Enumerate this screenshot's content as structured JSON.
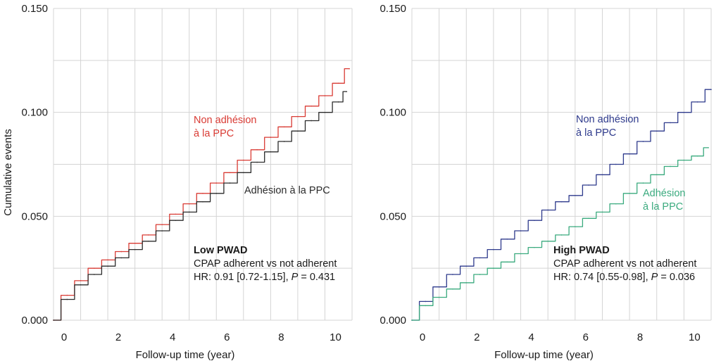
{
  "chart_data": [
    {
      "type": "line",
      "panel": "left",
      "title": "",
      "xlabel": "Follow-up time (year)",
      "ylabel": "Cumulative events",
      "xlim": [
        0,
        11
      ],
      "ylim": [
        0,
        0.15
      ],
      "xticks": [
        0,
        2,
        4,
        6,
        8,
        10
      ],
      "xtick_labels": [
        "0",
        "2",
        "4",
        "6",
        "8",
        "10"
      ],
      "yticks": [
        0,
        0.05,
        0.1,
        0.15
      ],
      "ytick_labels": [
        "0.000",
        "0.050",
        "0.100",
        "0.150"
      ],
      "grid": true,
      "series": [
        {
          "name": "Non adhésion\nà la PPC",
          "label_lines": [
            "Non adhésion",
            "à la PPC"
          ],
          "color": "#d93b34",
          "x": [
            0,
            0.5,
            1,
            1.5,
            2,
            2.5,
            3,
            3.5,
            4,
            4.5,
            5,
            5.5,
            6,
            6.5,
            7,
            7.5,
            8,
            8.5,
            9,
            9.5,
            10,
            10.5,
            10.9
          ],
          "y": [
            0,
            0.012,
            0.019,
            0.025,
            0.029,
            0.033,
            0.037,
            0.041,
            0.046,
            0.051,
            0.056,
            0.061,
            0.066,
            0.071,
            0.077,
            0.082,
            0.088,
            0.093,
            0.098,
            0.103,
            0.108,
            0.114,
            0.121
          ]
        },
        {
          "name": "Adhésion à la PPC",
          "label_lines": [
            "Adhésion à la PPC"
          ],
          "color": "#2b2b2b",
          "x": [
            0,
            0.5,
            1,
            1.5,
            2,
            2.5,
            3,
            3.5,
            4,
            4.5,
            5,
            5.5,
            6,
            6.5,
            7,
            7.5,
            8,
            8.5,
            9,
            9.5,
            10,
            10.5,
            10.8
          ],
          "y": [
            0,
            0.01,
            0.017,
            0.022,
            0.026,
            0.03,
            0.034,
            0.038,
            0.043,
            0.048,
            0.052,
            0.057,
            0.061,
            0.066,
            0.071,
            0.076,
            0.081,
            0.086,
            0.091,
            0.096,
            0.1,
            0.105,
            0.11
          ]
        }
      ],
      "annotation": {
        "heading": "Low PWAD",
        "line2": "CPAP adherent vs not adherent",
        "hr_prefix": "HR: 0.91 [0.72-1.15], ",
        "p_symbol": "P",
        "p_value": " = 0.431"
      }
    },
    {
      "type": "line",
      "panel": "right",
      "title": "",
      "xlabel": "Follow-up time (year)",
      "ylabel": "",
      "xlim": [
        0,
        11
      ],
      "ylim": [
        0,
        0.15
      ],
      "xticks": [
        0,
        2,
        4,
        6,
        8,
        10
      ],
      "xtick_labels": [
        "0",
        "2",
        "4",
        "6",
        "8",
        "10"
      ],
      "yticks": [
        0,
        0.05,
        0.1,
        0.15
      ],
      "ytick_labels": [
        "0.000",
        "0.050",
        "0.100",
        "0.150"
      ],
      "grid": true,
      "series": [
        {
          "name": "Non adhésion\nà la PPC",
          "label_lines": [
            "Non adhésion",
            "à la PPC"
          ],
          "color": "#2e3a8c",
          "x": [
            0,
            0.5,
            1,
            1.5,
            2,
            2.5,
            3,
            3.5,
            4,
            4.5,
            5,
            5.5,
            6,
            6.5,
            7,
            7.5,
            8,
            8.5,
            9,
            9.5,
            10,
            10.5,
            11
          ],
          "y": [
            0,
            0.009,
            0.016,
            0.022,
            0.026,
            0.03,
            0.034,
            0.039,
            0.043,
            0.048,
            0.053,
            0.057,
            0.06,
            0.065,
            0.07,
            0.075,
            0.08,
            0.086,
            0.091,
            0.095,
            0.1,
            0.105,
            0.111
          ]
        },
        {
          "name": "Adhésion\nà la PPC",
          "label_lines": [
            "Adhésion",
            "à la PPC"
          ],
          "color": "#3aaa7e",
          "x": [
            0,
            0.5,
            1,
            1.5,
            2,
            2.5,
            3,
            3.5,
            4,
            4.5,
            5,
            5.5,
            6,
            6.5,
            7,
            7.5,
            8,
            8.5,
            9,
            9.5,
            10,
            10.5,
            10.9
          ],
          "y": [
            0,
            0.007,
            0.011,
            0.015,
            0.018,
            0.022,
            0.025,
            0.028,
            0.032,
            0.035,
            0.038,
            0.041,
            0.045,
            0.049,
            0.052,
            0.056,
            0.061,
            0.066,
            0.07,
            0.074,
            0.077,
            0.079,
            0.083
          ]
        }
      ],
      "annotation": {
        "heading": "High PWAD",
        "line2": "CPAP adherent vs not adherent",
        "hr_prefix": "HR: 0.74 [0.55-0.98], ",
        "p_symbol": "P",
        "p_value": " = 0.036"
      }
    }
  ]
}
